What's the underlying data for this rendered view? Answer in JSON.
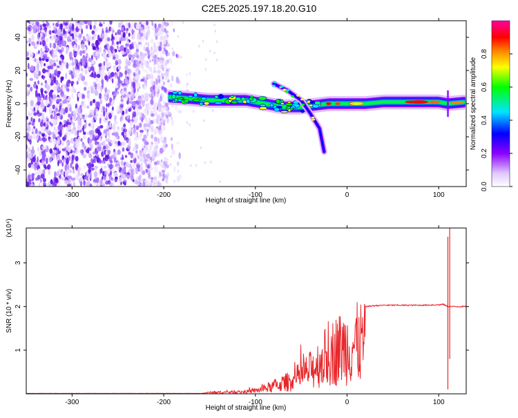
{
  "title": "C2E5.2025.197.18.20.G10",
  "colors": {
    "snr_line": "#e8262a",
    "spectrogram_noise": "#7b2cf0",
    "background": "#ffffff"
  },
  "chart_data": [
    {
      "type": "heatmap",
      "xlabel": "Height of straight line (km)",
      "ylabel": "Frequency (Hz)",
      "xlim": [
        -350,
        130
      ],
      "ylim": [
        -50,
        50
      ],
      "xticks": [
        -300,
        -200,
        -100,
        0,
        100
      ],
      "yticks": [
        -40,
        -20,
        0,
        20,
        40
      ],
      "colorbar": {
        "label": "Normalized spectral amplitude",
        "range": [
          0,
          1
        ],
        "ticks": [
          "0.0",
          "0.2",
          "0.4",
          "0.6",
          "0.8"
        ],
        "colormap": [
          "#ffffff",
          "#8b00ff",
          "#0000ff",
          "#00e5ff",
          "#00ff00",
          "#ffff00",
          "#ff8000",
          "#ff0000",
          "#ff00a0"
        ]
      },
      "features": {
        "noise_region_x": [
          -350,
          -195
        ],
        "main_trace": {
          "x": [
            -195,
            -170,
            -150,
            -130,
            -110,
            -90,
            -70,
            -50,
            -35,
            -20,
            0,
            20,
            40,
            60,
            80,
            100,
            110,
            130
          ],
          "y": [
            4,
            3,
            2,
            2,
            2,
            0,
            -2,
            -2,
            -1,
            0,
            0,
            0,
            1,
            1,
            1,
            1,
            0,
            1
          ]
        },
        "secondary_trace": {
          "x": [
            -80,
            -65,
            -50,
            -40,
            -30,
            -25
          ],
          "y": [
            12,
            8,
            2,
            -6,
            -15,
            -29
          ]
        }
      },
      "grid": false
    },
    {
      "type": "line",
      "xlabel": "Height of straight line (km)",
      "ylabel": "SNR (10 * v/v)",
      "scale_label": "(x10⁴)",
      "xlim": [
        -350,
        130
      ],
      "ylim": [
        0,
        3.8
      ],
      "xticks": [
        -300,
        -200,
        -100,
        0,
        100
      ],
      "yticks": [
        1,
        2,
        3
      ],
      "envelope": {
        "x": [
          -350,
          -160,
          -150,
          -130,
          -110,
          -100,
          -90,
          -80,
          -70,
          -60,
          -50,
          -40,
          -30,
          -20,
          -10,
          0,
          10,
          20,
          30,
          40,
          60,
          80,
          100,
          105,
          110,
          112,
          115,
          120,
          130
        ],
        "y": [
          0.01,
          0.01,
          0.05,
          0.06,
          0.08,
          0.12,
          0.2,
          0.3,
          0.4,
          0.5,
          0.7,
          0.9,
          1.2,
          1.5,
          1.7,
          1.8,
          1.9,
          2.0,
          2.02,
          2.03,
          2.03,
          2.03,
          2.04,
          2.05,
          2.0,
          2.0,
          2.0,
          2.0,
          2.0
        ]
      },
      "spikes": [
        {
          "x": 110,
          "y_min": 0.1,
          "y_max": 3.6
        },
        {
          "x": 112,
          "y_min": 0.8,
          "y_max": 3.8
        }
      ],
      "grid": false
    }
  ]
}
